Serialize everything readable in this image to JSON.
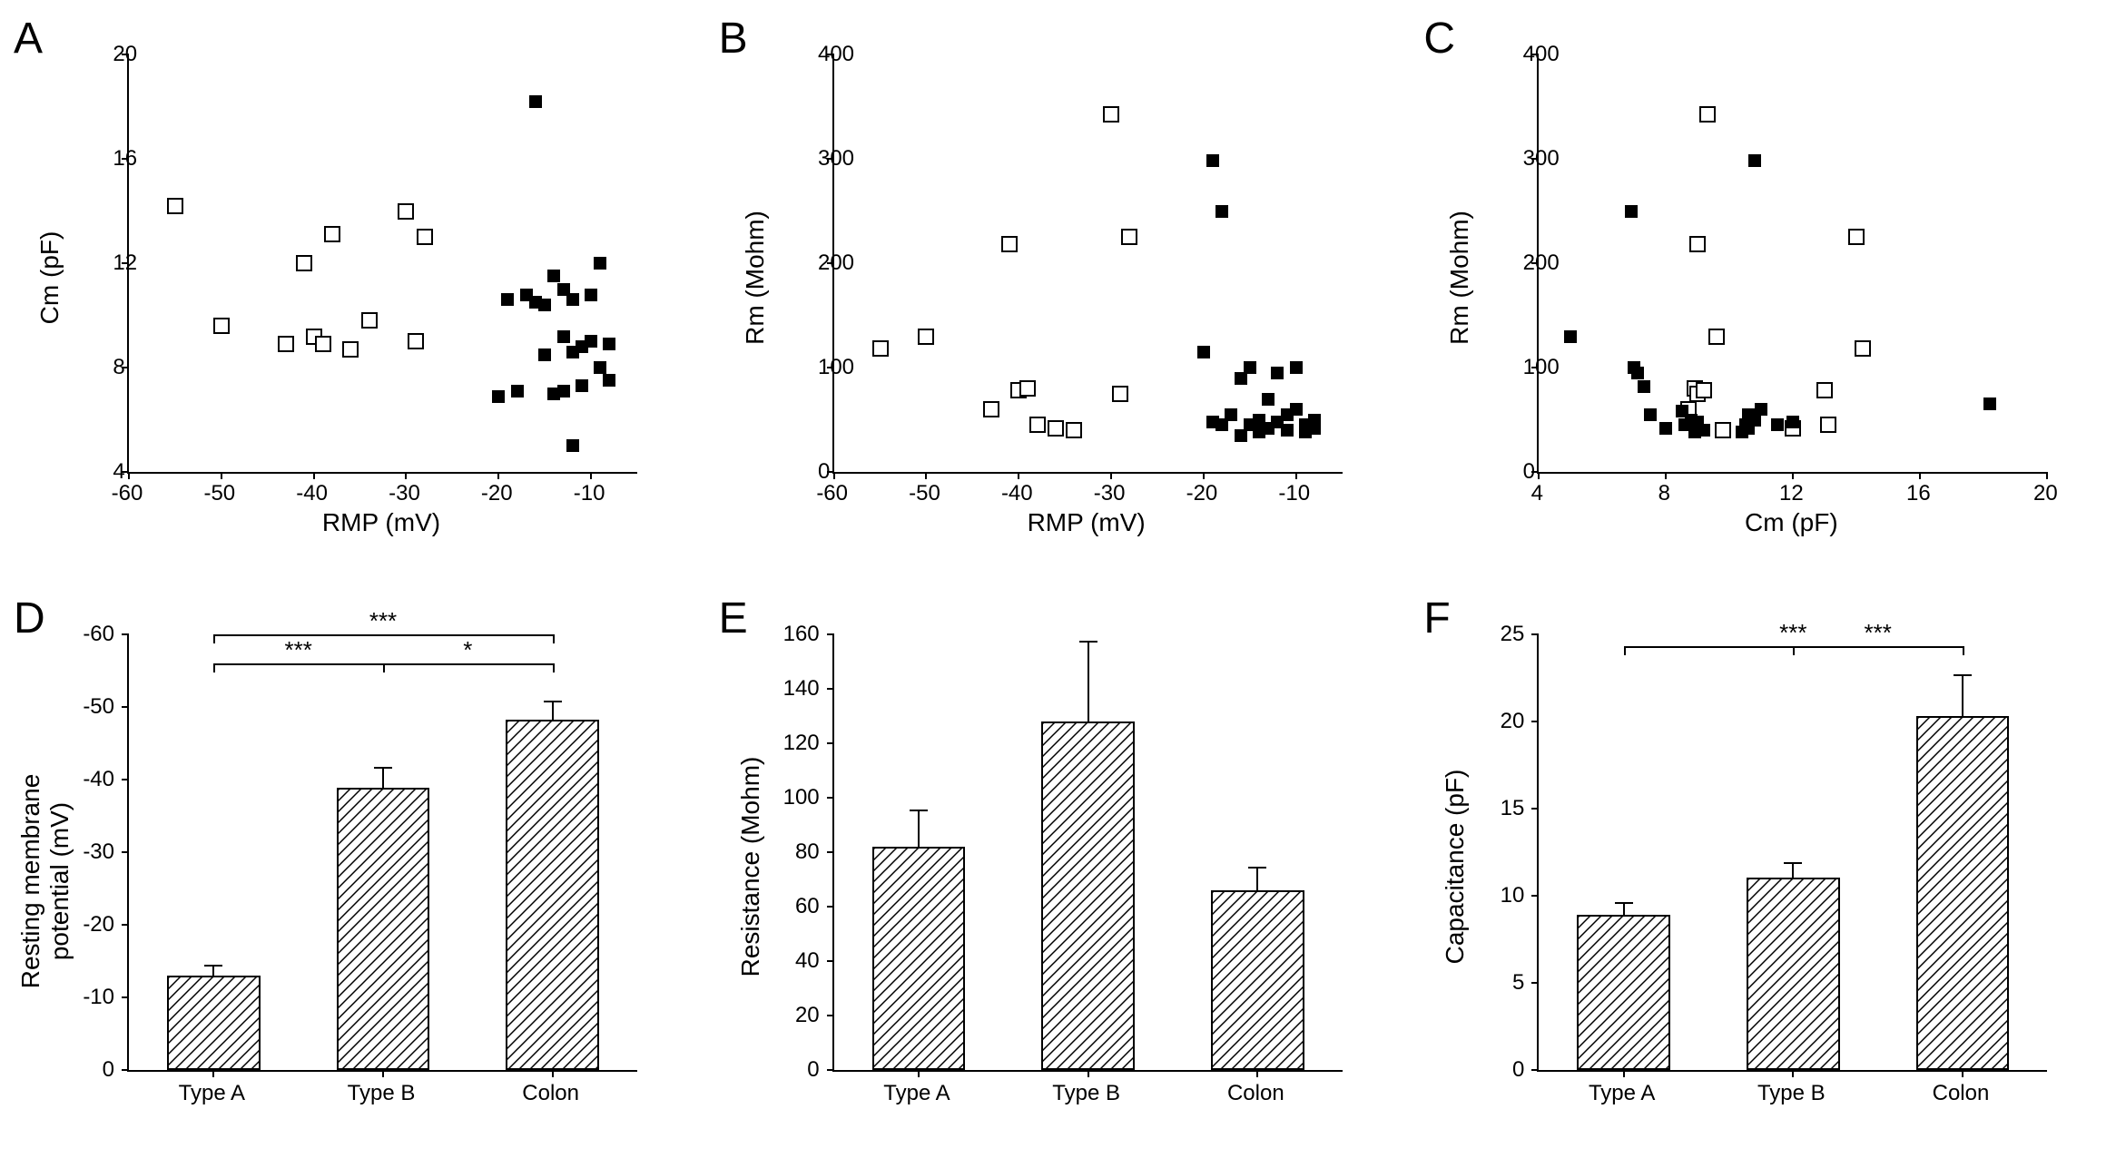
{
  "layout": {
    "panel_labels": [
      "A",
      "B",
      "C",
      "D",
      "E",
      "F"
    ],
    "label_fontsize": 48
  },
  "colors": {
    "ink": "#000000",
    "bg": "#ffffff",
    "hatch": "#000000"
  },
  "panelA": {
    "type": "scatter",
    "xlabel": "RMP (mV)",
    "ylabel": "Cm (pF)",
    "xlim": [
      -60,
      -5
    ],
    "ylim": [
      4,
      20
    ],
    "xticks": [
      -60,
      -50,
      -40,
      -30,
      -20,
      -10
    ],
    "yticks": [
      4,
      8,
      12,
      16,
      20
    ],
    "series": [
      {
        "marker": "open",
        "color": "#000000",
        "points": [
          [
            -55,
            14.2
          ],
          [
            -50,
            9.6
          ],
          [
            -43,
            8.9
          ],
          [
            -41,
            12.0
          ],
          [
            -40,
            9.2
          ],
          [
            -39,
            8.9
          ],
          [
            -38,
            13.1
          ],
          [
            -36,
            8.7
          ],
          [
            -34,
            9.8
          ],
          [
            -30,
            14.0
          ],
          [
            -29,
            9.0
          ],
          [
            -28,
            13.0
          ]
        ]
      },
      {
        "marker": "filled",
        "color": "#000000",
        "points": [
          [
            -20,
            6.9
          ],
          [
            -19,
            10.6
          ],
          [
            -18,
            7.1
          ],
          [
            -17,
            10.8
          ],
          [
            -16,
            10.5
          ],
          [
            -16,
            18.2
          ],
          [
            -15,
            8.5
          ],
          [
            -15,
            10.4
          ],
          [
            -14,
            11.5
          ],
          [
            -14,
            7.0
          ],
          [
            -13,
            9.2
          ],
          [
            -13,
            11.0
          ],
          [
            -12,
            10.6
          ],
          [
            -12,
            5.0
          ],
          [
            -11,
            8.8
          ],
          [
            -11,
            7.3
          ],
          [
            -10,
            9.0
          ],
          [
            -10,
            10.8
          ],
          [
            -9,
            8.0
          ],
          [
            -9,
            12.0
          ],
          [
            -8,
            7.5
          ],
          [
            -8,
            8.9
          ],
          [
            -13,
            7.1
          ],
          [
            -12,
            8.6
          ]
        ]
      }
    ]
  },
  "panelB": {
    "type": "scatter",
    "xlabel": "RMP (mV)",
    "ylabel": "Rm (Mohm)",
    "xlim": [
      -60,
      -5
    ],
    "ylim": [
      0,
      400
    ],
    "xticks": [
      -60,
      -50,
      -40,
      -30,
      -20,
      -10
    ],
    "yticks": [
      0,
      100,
      200,
      300,
      400
    ],
    "series": [
      {
        "marker": "open",
        "color": "#000000",
        "points": [
          [
            -55,
            118
          ],
          [
            -50,
            130
          ],
          [
            -43,
            60
          ],
          [
            -41,
            218
          ],
          [
            -40,
            78
          ],
          [
            -39,
            80
          ],
          [
            -38,
            45
          ],
          [
            -36,
            42
          ],
          [
            -34,
            40
          ],
          [
            -30,
            343
          ],
          [
            -29,
            75
          ],
          [
            -28,
            225
          ]
        ]
      },
      {
        "marker": "filled",
        "color": "#000000",
        "points": [
          [
            -20,
            115
          ],
          [
            -19,
            48
          ],
          [
            -19,
            298
          ],
          [
            -18,
            45
          ],
          [
            -18,
            250
          ],
          [
            -17,
            55
          ],
          [
            -16,
            90
          ],
          [
            -16,
            35
          ],
          [
            -15,
            100
          ],
          [
            -15,
            45
          ],
          [
            -14,
            50
          ],
          [
            -14,
            38
          ],
          [
            -13,
            42
          ],
          [
            -13,
            70
          ],
          [
            -12,
            95
          ],
          [
            -12,
            48
          ],
          [
            -11,
            55
          ],
          [
            -11,
            40
          ],
          [
            -10,
            60
          ],
          [
            -10,
            100
          ],
          [
            -9,
            45
          ],
          [
            -9,
            38
          ],
          [
            -8,
            42
          ],
          [
            -8,
            50
          ]
        ]
      }
    ]
  },
  "panelC": {
    "type": "scatter",
    "xlabel": "Cm (pF)",
    "ylabel": "Rm (Mohm)",
    "xlim": [
      4,
      20
    ],
    "ylim": [
      0,
      400
    ],
    "xticks": [
      4,
      8,
      12,
      16,
      20
    ],
    "yticks": [
      0,
      100,
      200,
      300,
      400
    ],
    "series": [
      {
        "marker": "open",
        "color": "#000000",
        "points": [
          [
            8.7,
            60
          ],
          [
            8.9,
            80
          ],
          [
            9.0,
            75
          ],
          [
            9.2,
            78
          ],
          [
            9.0,
            218
          ],
          [
            9.6,
            130
          ],
          [
            9.8,
            40
          ],
          [
            12.0,
            42
          ],
          [
            13.0,
            78
          ],
          [
            13.1,
            45
          ],
          [
            14.0,
            225
          ],
          [
            14.2,
            118
          ],
          [
            9.3,
            343
          ]
        ]
      },
      {
        "marker": "filled",
        "color": "#000000",
        "points": [
          [
            5.0,
            130
          ],
          [
            6.9,
            250
          ],
          [
            7.0,
            100
          ],
          [
            7.1,
            95
          ],
          [
            7.3,
            82
          ],
          [
            7.5,
            55
          ],
          [
            8.0,
            42
          ],
          [
            8.5,
            58
          ],
          [
            8.6,
            45
          ],
          [
            8.8,
            50
          ],
          [
            8.9,
            38
          ],
          [
            9.0,
            48
          ],
          [
            9.2,
            40
          ],
          [
            10.4,
            38
          ],
          [
            10.5,
            45
          ],
          [
            10.6,
            42
          ],
          [
            10.6,
            55
          ],
          [
            10.8,
            298
          ],
          [
            10.8,
            50
          ],
          [
            11.0,
            60
          ],
          [
            11.5,
            45
          ],
          [
            12.0,
            48
          ],
          [
            18.2,
            65
          ]
        ]
      }
    ]
  },
  "panelD": {
    "type": "bar",
    "ylabel": "Resting membrane potential (mV)",
    "categories": [
      "Type A",
      "Type B",
      "Colon"
    ],
    "values": [
      -13.0,
      -38.8,
      -48.2
    ],
    "errors": [
      1.2,
      2.6,
      2.4
    ],
    "ylim": [
      0,
      -60
    ],
    "yticks": [
      0,
      -10,
      -20,
      -30,
      -40,
      -50,
      -60
    ],
    "ytick_labels": [
      "0",
      "-10",
      "-20",
      "-30",
      "-40",
      "-50",
      "-60"
    ],
    "bar_width": 0.55,
    "fill": "hatch",
    "sig": [
      {
        "from": 0,
        "to": 1,
        "level": -56,
        "text": "***"
      },
      {
        "from": 1,
        "to": 2,
        "level": -56,
        "text": "*"
      },
      {
        "from": 0,
        "to": 2,
        "level": -60,
        "text": "***"
      }
    ]
  },
  "panelE": {
    "type": "bar",
    "ylabel": "Resistance (Mohm)",
    "categories": [
      "Type A",
      "Type B",
      "Colon"
    ],
    "values": [
      82,
      128,
      66
    ],
    "errors": [
      13,
      29,
      8
    ],
    "ylim": [
      0,
      160
    ],
    "yticks": [
      0,
      20,
      40,
      60,
      80,
      100,
      120,
      140,
      160
    ],
    "bar_width": 0.55,
    "fill": "hatch",
    "sig": []
  },
  "panelF": {
    "type": "bar",
    "ylabel": "Capacitance (pF)",
    "categories": [
      "Type A",
      "Type B",
      "Colon"
    ],
    "values": [
      8.9,
      11.0,
      20.3
    ],
    "errors": [
      0.6,
      0.8,
      2.3
    ],
    "ylim": [
      0,
      25
    ],
    "yticks": [
      0,
      5,
      10,
      15,
      20,
      25
    ],
    "bar_width": 0.55,
    "fill": "hatch",
    "sig": [
      {
        "from": 0,
        "to": 2,
        "level": 24.3,
        "text": "***"
      },
      {
        "from": 1,
        "to": 2,
        "level": 24.3,
        "text": "***"
      }
    ]
  }
}
